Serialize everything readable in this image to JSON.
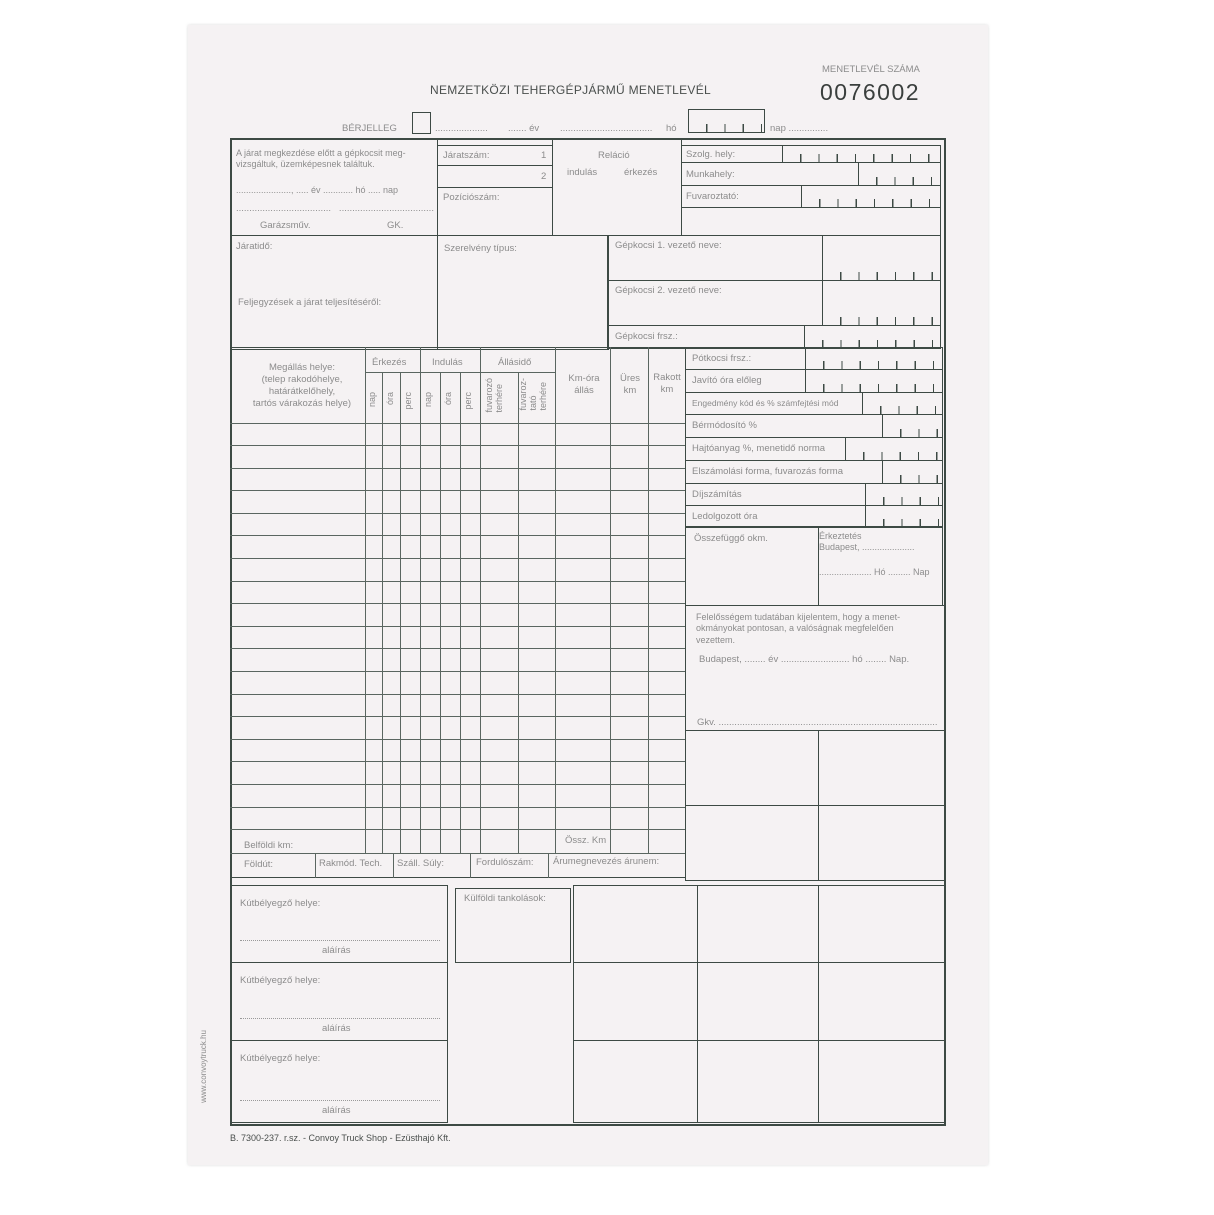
{
  "header": {
    "title": "NEMZETKÖZI TEHERGÉPJÁRMŰ MENETLEVÉL",
    "number_label": "MENETLEVÉL SZÁMA",
    "number": "0076002",
    "berjelleg": "BÉRJELLEG",
    "ev": "....... év",
    "ho": "hó",
    "nap": "nap ..............."
  },
  "inspection": {
    "text": "A járat megkezdése előtt a gépkocsit meg-\nvizsgáltuk, üzemképesnek találtuk.",
    "date_line": "......................, ..... év ............ hó ..... nap",
    "garazs": "Garázsműv.",
    "gk": "GK."
  },
  "jarat": {
    "jaratszam": "Járatszám:",
    "n1": "1",
    "n2": "2",
    "pozicio": "Pozíciószám:"
  },
  "relacio": {
    "title": "Reláció",
    "indulas": "indulás",
    "erkezes": "érkezés"
  },
  "codes": {
    "szolg": "Szolg. hely:",
    "munkahely": "Munkahely:",
    "fuvaroztato": "Fuvaroztató:"
  },
  "section2": {
    "jaratido": "Járatidő:",
    "feljegyzesek": "Feljegyzések a járat teljesítéséről:",
    "szerelveny": "Szerelvény típus:",
    "vezeto1": "Gépkocsi 1. vezető neve:",
    "vezeto2": "Gépkocsi 2. vezető neve:",
    "frsz": "Gépkocsi frsz.:"
  },
  "table": {
    "megallas": "Megállás helye:\n(telep rakodóhelye,\nhatárátkelőhely,\ntartós várakozás helye)",
    "erkezes": "Érkezés",
    "indulas": "Indulás",
    "allasido": "Állásidő",
    "nap": "nap",
    "ora": "óra",
    "perc": "perc",
    "fuvarozo": "fuvarozó\nterhére",
    "fuvaroztato": "fuvaroz-\ntató\nterhére",
    "kmora": "Km-óra\nállás",
    "ures": "Üres\nkm",
    "rakott": "Rakott\nkm",
    "belfoldi": "Belföldi km:",
    "ossz": "Össz. Km",
    "foldut": "Földút:",
    "rakmod": "Rakmód. Tech.",
    "szall": "Száll. Súly:",
    "fordulo": "Fordulószám:",
    "aru": "Árumegnevezés árunem:"
  },
  "right_fields": [
    "Pótkocsi frsz.:",
    "Javító óra előleg",
    "Engedmény kód és % számfejtési mód",
    "Bérmódosító %",
    "Hajtóanyag %, menetidő norma",
    "Elszámolási forma, fuvarozás forma",
    "Díjszámítás",
    "Ledolgozott óra"
  ],
  "osszefuggo": "Összefüggő okm.",
  "erkeztetes": {
    "title": "Érkeztetés\nBudapest, .....................",
    "date": "..................... Hó ......... Nap"
  },
  "declaration": {
    "text": "Felelősségem tudatában kijelentem, hogy a menet-\nokmányokat pontosan, a valóságnak megfelelően\nvezettem.",
    "date": "Budapest, ........ év .......................... hó ........ Nap.",
    "gkv": "Gkv. ..................................................................................."
  },
  "bottom": {
    "kutbelyegzo": "Kútbélyegző helye:",
    "alairas": "aláírás",
    "kulfoldi": "Külföldi tankolások:"
  },
  "footer": "B. 7300-237. r.sz. - Convoy Truck Shop - Ezüsthajó Kft.",
  "side_url": "www.convoytruck.hu"
}
